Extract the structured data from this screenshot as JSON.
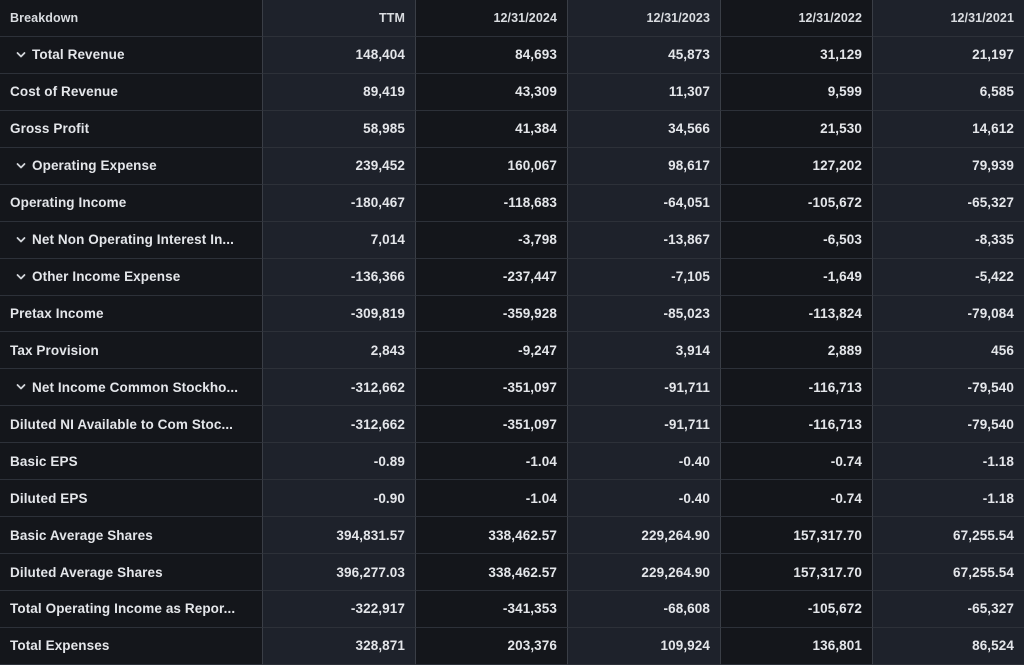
{
  "table": {
    "columns": [
      "Breakdown",
      "TTM",
      "12/31/2024",
      "12/31/2023",
      "12/31/2022",
      "12/31/2021"
    ],
    "rows": [
      {
        "label": "Total Revenue",
        "expandable": true,
        "values": [
          "148,404",
          "84,693",
          "45,873",
          "31,129",
          "21,197"
        ]
      },
      {
        "label": "Cost of Revenue",
        "expandable": false,
        "values": [
          "89,419",
          "43,309",
          "11,307",
          "9,599",
          "6,585"
        ]
      },
      {
        "label": "Gross Profit",
        "expandable": false,
        "values": [
          "58,985",
          "41,384",
          "34,566",
          "21,530",
          "14,612"
        ]
      },
      {
        "label": "Operating Expense",
        "expandable": true,
        "values": [
          "239,452",
          "160,067",
          "98,617",
          "127,202",
          "79,939"
        ]
      },
      {
        "label": "Operating Income",
        "expandable": false,
        "values": [
          "-180,467",
          "-118,683",
          "-64,051",
          "-105,672",
          "-65,327"
        ]
      },
      {
        "label": "Net Non Operating Interest In...",
        "expandable": true,
        "values": [
          "7,014",
          "-3,798",
          "-13,867",
          "-6,503",
          "-8,335"
        ]
      },
      {
        "label": "Other Income Expense",
        "expandable": true,
        "values": [
          "-136,366",
          "-237,447",
          "-7,105",
          "-1,649",
          "-5,422"
        ]
      },
      {
        "label": "Pretax Income",
        "expandable": false,
        "values": [
          "-309,819",
          "-359,928",
          "-85,023",
          "-113,824",
          "-79,084"
        ]
      },
      {
        "label": "Tax Provision",
        "expandable": false,
        "values": [
          "2,843",
          "-9,247",
          "3,914",
          "2,889",
          "456"
        ]
      },
      {
        "label": "Net Income Common Stockho...",
        "expandable": true,
        "values": [
          "-312,662",
          "-351,097",
          "-91,711",
          "-116,713",
          "-79,540"
        ]
      },
      {
        "label": "Diluted NI Available to Com Stoc...",
        "expandable": false,
        "values": [
          "-312,662",
          "-351,097",
          "-91,711",
          "-116,713",
          "-79,540"
        ]
      },
      {
        "label": "Basic EPS",
        "expandable": false,
        "values": [
          "-0.89",
          "-1.04",
          "-0.40",
          "-0.74",
          "-1.18"
        ]
      },
      {
        "label": "Diluted EPS",
        "expandable": false,
        "values": [
          "-0.90",
          "-1.04",
          "-0.40",
          "-0.74",
          "-1.18"
        ]
      },
      {
        "label": "Basic Average Shares",
        "expandable": false,
        "values": [
          "394,831.57",
          "338,462.57",
          "229,264.90",
          "157,317.70",
          "67,255.54"
        ]
      },
      {
        "label": "Diluted Average Shares",
        "expandable": false,
        "values": [
          "396,277.03",
          "338,462.57",
          "229,264.90",
          "157,317.70",
          "67,255.54"
        ]
      },
      {
        "label": "Total Operating Income as Repor...",
        "expandable": false,
        "values": [
          "-322,917",
          "-341,353",
          "-68,608",
          "-105,672",
          "-65,327"
        ]
      },
      {
        "label": "Total Expenses",
        "expandable": false,
        "values": [
          "328,871",
          "203,376",
          "109,924",
          "136,801",
          "86,524"
        ]
      }
    ],
    "colors": {
      "column_dark": "#14161b",
      "column_light": "#1e222b",
      "row_border": "#2d3139",
      "column_border": "#3a3e46",
      "text": "#e4e6ea"
    },
    "icons": {
      "expand_chevron": "chevron-down"
    }
  }
}
